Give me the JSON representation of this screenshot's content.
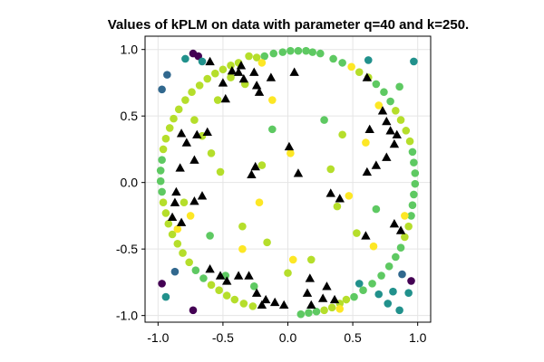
{
  "chart_data": {
    "type": "scatter",
    "title": "Values of kPLM on data with parameter q=40 and k=250.",
    "xlabel": "",
    "ylabel": "",
    "xlim": [
      -1.1,
      1.1
    ],
    "ylim": [
      -1.05,
      1.1
    ],
    "x_ticks": [
      -1.0,
      -0.5,
      0.0,
      0.5,
      1.0
    ],
    "x_tick_labels": [
      "-1.0",
      "-0.5",
      "0.0",
      "0.5",
      "1.0"
    ],
    "y_ticks": [
      -1.0,
      -0.5,
      0.0,
      0.5,
      1.0
    ],
    "y_tick_labels": [
      "-1.0",
      "-0.5",
      "0.0",
      "0.5",
      "1.0"
    ],
    "grid": true,
    "legend": false,
    "colormap": "viridis",
    "marker_colors": {
      "purple": "#440154",
      "blue": "#31688e",
      "teal": "#21918c",
      "green": "#5ec962",
      "lime": "#b5de2b",
      "yellow": "#fde725",
      "triangle": "#000000"
    },
    "points": [
      {
        "x": -0.97,
        "y": 0.7,
        "c": "blue"
      },
      {
        "x": -0.93,
        "y": 0.81,
        "c": "blue"
      },
      {
        "x": -0.73,
        "y": 0.97,
        "c": "purple"
      },
      {
        "x": -0.69,
        "y": 0.95,
        "c": "purple"
      },
      {
        "x": -0.79,
        "y": 0.93,
        "c": "teal"
      },
      {
        "x": -0.66,
        "y": 0.91,
        "c": "teal"
      },
      {
        "x": 0.97,
        "y": 0.91,
        "c": "teal"
      },
      {
        "x": -0.97,
        "y": -0.76,
        "c": "purple"
      },
      {
        "x": -0.87,
        "y": -0.67,
        "c": "blue"
      },
      {
        "x": -0.94,
        "y": -0.86,
        "c": "teal"
      },
      {
        "x": -0.73,
        "y": -0.96,
        "c": "purple"
      },
      {
        "x": 0.95,
        "y": -0.74,
        "c": "purple"
      },
      {
        "x": 0.88,
        "y": -0.69,
        "c": "blue"
      },
      {
        "x": 0.93,
        "y": -0.83,
        "c": "teal"
      },
      {
        "x": 0.81,
        "y": -0.82,
        "c": "teal"
      },
      {
        "x": 0.86,
        "y": -0.96,
        "c": "teal"
      },
      {
        "x": 0.77,
        "y": -0.91,
        "c": "teal"
      },
      {
        "x": 0.7,
        "y": -0.84,
        "c": "teal"
      },
      {
        "x": 0.62,
        "y": 0.92,
        "c": "teal"
      },
      {
        "x": 0.55,
        "y": -0.76,
        "c": "teal"
      },
      {
        "x": -0.18,
        "y": 0.95,
        "c": "green"
      },
      {
        "x": -0.11,
        "y": 0.97,
        "c": "green"
      },
      {
        "x": -0.04,
        "y": 0.98,
        "c": "green"
      },
      {
        "x": 0.02,
        "y": 0.99,
        "c": "green"
      },
      {
        "x": 0.08,
        "y": 0.99,
        "c": "green"
      },
      {
        "x": 0.14,
        "y": 0.99,
        "c": "green"
      },
      {
        "x": 0.19,
        "y": 0.98,
        "c": "green"
      },
      {
        "x": 0.25,
        "y": 0.97,
        "c": "green"
      },
      {
        "x": -0.24,
        "y": 0.94,
        "c": "lime"
      },
      {
        "x": -0.3,
        "y": 0.95,
        "c": "lime"
      },
      {
        "x": -0.38,
        "y": 0.9,
        "c": "lime"
      },
      {
        "x": -0.44,
        "y": 0.88,
        "c": "lime"
      },
      {
        "x": -0.5,
        "y": 0.85,
        "c": "lime"
      },
      {
        "x": -0.56,
        "y": 0.82,
        "c": "lime"
      },
      {
        "x": -0.62,
        "y": 0.78,
        "c": "lime"
      },
      {
        "x": -0.68,
        "y": 0.73,
        "c": "lime"
      },
      {
        "x": -0.74,
        "y": 0.68,
        "c": "lime"
      },
      {
        "x": -0.79,
        "y": 0.62,
        "c": "lime"
      },
      {
        "x": -0.84,
        "y": 0.55,
        "c": "lime"
      },
      {
        "x": -0.88,
        "y": 0.48,
        "c": "lime"
      },
      {
        "x": -0.91,
        "y": 0.41,
        "c": "lime"
      },
      {
        "x": -0.94,
        "y": 0.33,
        "c": "lime"
      },
      {
        "x": -0.96,
        "y": 0.25,
        "c": "lime"
      },
      {
        "x": -0.97,
        "y": 0.17,
        "c": "green"
      },
      {
        "x": -0.98,
        "y": 0.09,
        "c": "green"
      },
      {
        "x": -0.98,
        "y": 0.01,
        "c": "green"
      },
      {
        "x": -0.97,
        "y": -0.07,
        "c": "green"
      },
      {
        "x": -0.96,
        "y": -0.15,
        "c": "lime"
      },
      {
        "x": -0.94,
        "y": -0.23,
        "c": "lime"
      },
      {
        "x": -0.92,
        "y": -0.31,
        "c": "lime"
      },
      {
        "x": -0.89,
        "y": -0.39,
        "c": "lime"
      },
      {
        "x": -0.85,
        "y": -0.46,
        "c": "lime"
      },
      {
        "x": -0.81,
        "y": -0.53,
        "c": "lime"
      },
      {
        "x": -0.76,
        "y": -0.6,
        "c": "lime"
      },
      {
        "x": -0.71,
        "y": -0.66,
        "c": "green"
      },
      {
        "x": -0.65,
        "y": -0.72,
        "c": "green"
      },
      {
        "x": -0.59,
        "y": -0.77,
        "c": "lime"
      },
      {
        "x": -0.53,
        "y": -0.81,
        "c": "lime"
      },
      {
        "x": -0.47,
        "y": -0.85,
        "c": "lime"
      },
      {
        "x": -0.41,
        "y": -0.88,
        "c": "lime"
      },
      {
        "x": -0.34,
        "y": -0.91,
        "c": "lime"
      },
      {
        "x": -0.27,
        "y": -0.93,
        "c": "lime"
      },
      {
        "x": 0.1,
        "y": -0.99,
        "c": "green"
      },
      {
        "x": 0.16,
        "y": -0.98,
        "c": "green"
      },
      {
        "x": 0.22,
        "y": -0.97,
        "c": "green"
      },
      {
        "x": 0.28,
        "y": -0.96,
        "c": "lime"
      },
      {
        "x": 0.34,
        "y": -0.94,
        "c": "lime"
      },
      {
        "x": 0.4,
        "y": -0.91,
        "c": "lime"
      },
      {
        "x": 0.45,
        "y": -0.88,
        "c": "lime"
      },
      {
        "x": 0.51,
        "y": -0.86,
        "c": "green"
      },
      {
        "x": 0.58,
        "y": -0.81,
        "c": "green"
      },
      {
        "x": 0.65,
        "y": -0.76,
        "c": "green"
      },
      {
        "x": 0.72,
        "y": -0.7,
        "c": "green"
      },
      {
        "x": 0.78,
        "y": -0.63,
        "c": "green"
      },
      {
        "x": 0.83,
        "y": -0.56,
        "c": "green"
      },
      {
        "x": 0.87,
        "y": -0.49,
        "c": "green"
      },
      {
        "x": 0.9,
        "y": -0.41,
        "c": "lime"
      },
      {
        "x": 0.93,
        "y": -0.33,
        "c": "lime"
      },
      {
        "x": 0.95,
        "y": -0.25,
        "c": "green"
      },
      {
        "x": 0.96,
        "y": -0.17,
        "c": "green"
      },
      {
        "x": 0.97,
        "y": -0.09,
        "c": "green"
      },
      {
        "x": 0.98,
        "y": -0.01,
        "c": "green"
      },
      {
        "x": 0.98,
        "y": 0.07,
        "c": "green"
      },
      {
        "x": 0.97,
        "y": 0.15,
        "c": "green"
      },
      {
        "x": 0.96,
        "y": 0.23,
        "c": "green"
      },
      {
        "x": 0.94,
        "y": 0.31,
        "c": "lime"
      },
      {
        "x": 0.91,
        "y": 0.39,
        "c": "lime"
      },
      {
        "x": 0.87,
        "y": 0.47,
        "c": "lime"
      },
      {
        "x": 0.83,
        "y": 0.54,
        "c": "lime"
      },
      {
        "x": 0.79,
        "y": 0.61,
        "c": "green"
      },
      {
        "x": 0.74,
        "y": 0.68,
        "c": "green"
      },
      {
        "x": 0.68,
        "y": 0.74,
        "c": "green"
      },
      {
        "x": 0.62,
        "y": 0.79,
        "c": "lime"
      },
      {
        "x": 0.55,
        "y": 0.83,
        "c": "lime"
      },
      {
        "x": 0.49,
        "y": 0.87,
        "c": "yellow"
      },
      {
        "x": 0.42,
        "y": 0.9,
        "c": "green"
      },
      {
        "x": 0.35,
        "y": 0.93,
        "c": "green"
      },
      {
        "x": -0.44,
        "y": 0.79,
        "c": "lime"
      },
      {
        "x": -0.2,
        "y": 0.9,
        "c": "yellow"
      },
      {
        "x": -0.33,
        "y": 0.74,
        "c": "lime"
      },
      {
        "x": -0.12,
        "y": 0.62,
        "c": "yellow"
      },
      {
        "x": -0.54,
        "y": 0.62,
        "c": "lime"
      },
      {
        "x": -0.72,
        "y": 0.47,
        "c": "lime"
      },
      {
        "x": -0.66,
        "y": 0.35,
        "c": "lime"
      },
      {
        "x": -0.59,
        "y": 0.22,
        "c": "lime"
      },
      {
        "x": -0.52,
        "y": 0.08,
        "c": "lime"
      },
      {
        "x": -0.12,
        "y": 0.4,
        "c": "green"
      },
      {
        "x": 0.02,
        "y": 0.22,
        "c": "yellow"
      },
      {
        "x": -0.2,
        "y": 0.13,
        "c": "lime"
      },
      {
        "x": -0.22,
        "y": -0.15,
        "c": "yellow"
      },
      {
        "x": -0.35,
        "y": -0.33,
        "c": "lime"
      },
      {
        "x": -0.16,
        "y": -0.45,
        "c": "lime"
      },
      {
        "x": 0.28,
        "y": 0.47,
        "c": "green"
      },
      {
        "x": 0.42,
        "y": 0.36,
        "c": "lime"
      },
      {
        "x": 0.33,
        "y": 0.1,
        "c": "lime"
      },
      {
        "x": 0.47,
        "y": -0.1,
        "c": "yellow"
      },
      {
        "x": 0.38,
        "y": -0.18,
        "c": "lime"
      },
      {
        "x": 0.53,
        "y": -0.38,
        "c": "lime"
      },
      {
        "x": 0.18,
        "y": -0.58,
        "c": "lime"
      },
      {
        "x": 0.0,
        "y": -0.68,
        "c": "lime"
      },
      {
        "x": -0.35,
        "y": -0.5,
        "c": "yellow"
      },
      {
        "x": -0.6,
        "y": -0.4,
        "c": "green"
      },
      {
        "x": -0.85,
        "y": -0.35,
        "c": "yellow"
      },
      {
        "x": -0.8,
        "y": -0.15,
        "c": "lime"
      },
      {
        "x": -0.75,
        "y": -0.25,
        "c": "yellow"
      },
      {
        "x": 0.7,
        "y": 0.58,
        "c": "yellow"
      },
      {
        "x": 0.86,
        "y": 0.72,
        "c": "green"
      },
      {
        "x": 0.6,
        "y": 0.3,
        "c": "yellow"
      },
      {
        "x": 0.68,
        "y": -0.2,
        "c": "green"
      },
      {
        "x": 0.9,
        "y": -0.25,
        "c": "yellow"
      },
      {
        "x": 0.66,
        "y": -0.48,
        "c": "yellow"
      },
      {
        "x": -0.48,
        "y": -0.7,
        "c": "green"
      },
      {
        "x": -0.26,
        "y": -0.78,
        "c": "green"
      },
      {
        "x": 0.04,
        "y": -0.58,
        "c": "yellow"
      },
      {
        "x": 0.4,
        "y": -0.95,
        "c": "yellow"
      }
    ],
    "triangles": [
      {
        "x": -0.6,
        "y": 0.91
      },
      {
        "x": -0.43,
        "y": 0.84
      },
      {
        "x": -0.38,
        "y": 0.83
      },
      {
        "x": -0.34,
        "y": 0.78
      },
      {
        "x": -0.36,
        "y": 0.88
      },
      {
        "x": -0.26,
        "y": 0.83
      },
      {
        "x": -0.24,
        "y": 0.73
      },
      {
        "x": -0.13,
        "y": 0.79
      },
      {
        "x": -0.22,
        "y": 0.68
      },
      {
        "x": -0.48,
        "y": 0.63
      },
      {
        "x": -0.5,
        "y": 0.75
      },
      {
        "x": 0.05,
        "y": 0.83
      },
      {
        "x": -0.82,
        "y": 0.37
      },
      {
        "x": -0.78,
        "y": 0.3
      },
      {
        "x": -0.7,
        "y": 0.36
      },
      {
        "x": -0.62,
        "y": 0.38
      },
      {
        "x": -0.72,
        "y": 0.17
      },
      {
        "x": -0.83,
        "y": 0.11
      },
      {
        "x": -0.87,
        "y": -0.15
      },
      {
        "x": -0.89,
        "y": -0.26
      },
      {
        "x": -0.86,
        "y": -0.07
      },
      {
        "x": -0.82,
        "y": -0.3
      },
      {
        "x": -0.66,
        "y": -0.1
      },
      {
        "x": -0.72,
        "y": -0.14
      },
      {
        "x": -0.25,
        "y": 0.12
      },
      {
        "x": -0.28,
        "y": 0.06
      },
      {
        "x": 0.01,
        "y": 0.27
      },
      {
        "x": 0.08,
        "y": 0.07
      },
      {
        "x": -0.38,
        "y": -0.7
      },
      {
        "x": -0.47,
        "y": -0.74
      },
      {
        "x": -0.52,
        "y": -0.7
      },
      {
        "x": -0.6,
        "y": -0.65
      },
      {
        "x": -0.3,
        "y": -0.7
      },
      {
        "x": -0.24,
        "y": -0.83
      },
      {
        "x": -0.17,
        "y": -0.88
      },
      {
        "x": -0.1,
        "y": -0.9
      },
      {
        "x": -0.03,
        "y": -0.92
      },
      {
        "x": -0.2,
        "y": -0.92
      },
      {
        "x": 0.15,
        "y": -0.83
      },
      {
        "x": 0.17,
        "y": -0.72
      },
      {
        "x": 0.27,
        "y": -0.87
      },
      {
        "x": 0.3,
        "y": -0.78
      },
      {
        "x": 0.36,
        "y": -0.88
      },
      {
        "x": 0.18,
        "y": -0.92
      },
      {
        "x": 0.61,
        "y": 0.79
      },
      {
        "x": 0.73,
        "y": 0.54
      },
      {
        "x": 0.76,
        "y": 0.46
      },
      {
        "x": 0.79,
        "y": 0.39
      },
      {
        "x": 0.84,
        "y": 0.36
      },
      {
        "x": 0.82,
        "y": 0.29
      },
      {
        "x": 0.76,
        "y": 0.19
      },
      {
        "x": 0.63,
        "y": 0.4
      },
      {
        "x": 0.68,
        "y": 0.13
      },
      {
        "x": 0.61,
        "y": 0.08
      },
      {
        "x": 0.82,
        "y": -0.31
      },
      {
        "x": 0.87,
        "y": -0.36
      },
      {
        "x": 0.6,
        "y": -0.4
      },
      {
        "x": 0.4,
        "y": -0.12
      },
      {
        "x": 0.33,
        "y": -0.08
      }
    ]
  }
}
